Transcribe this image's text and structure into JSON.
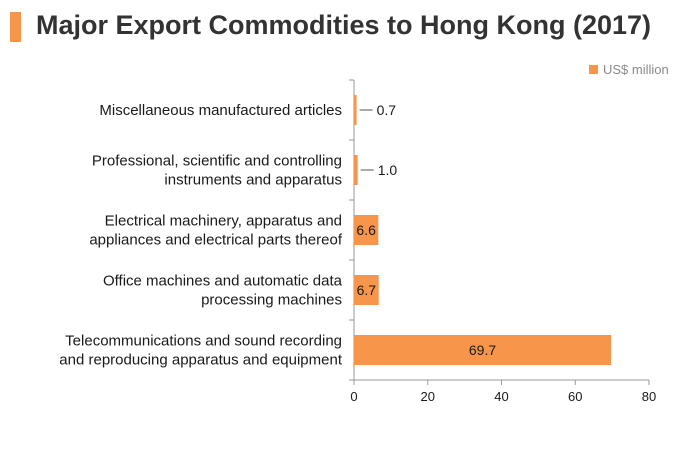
{
  "header": {
    "title": "Major Export Commodities to Hong Kong (2017)"
  },
  "colors": {
    "accent": "#f7954a",
    "title_text": "#333333",
    "axis": "#9a9a9a"
  },
  "chart_data": {
    "type": "bar",
    "orientation": "horizontal",
    "title": "Major Export Commodities to Hong Kong (2017)",
    "xlabel": "",
    "ylabel": "",
    "xlim": [
      0,
      80
    ],
    "xticks": [
      "0",
      "20",
      "40",
      "60",
      "80"
    ],
    "grid": false,
    "legend": {
      "position": "top-right",
      "entries": [
        "US$ million"
      ]
    },
    "categories": [
      [
        "Miscellaneous manufactured articles"
      ],
      [
        "Professional, scientific and controlling",
        "instruments and apparatus"
      ],
      [
        "Electrical machinery, apparatus and",
        "appliances and electrical parts thereof"
      ],
      [
        "Office machines and automatic data",
        "processing machines"
      ],
      [
        "Telecommunications and sound recording",
        "and reproducing apparatus and equipment"
      ]
    ],
    "series": [
      {
        "name": "US$ million",
        "values": [
          0.7,
          1.0,
          6.6,
          6.7,
          69.7
        ],
        "labels": [
          "0.7",
          "1.0",
          "6.6",
          "6.7",
          "69.7"
        ],
        "color": "#f7954a"
      }
    ]
  }
}
